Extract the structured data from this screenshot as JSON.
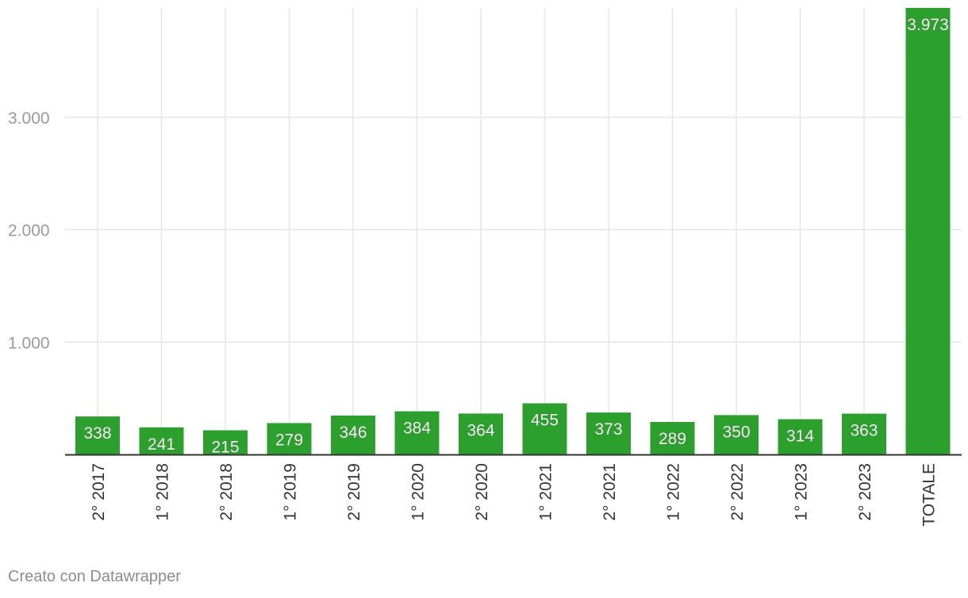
{
  "chart_data": {
    "type": "bar",
    "title": "",
    "xlabel": "",
    "ylabel": "",
    "categories": [
      "2° 2017",
      "1° 2018",
      "2° 2018",
      "1° 2019",
      "2° 2019",
      "1° 2020",
      "2° 2020",
      "1° 2021",
      "2° 2021",
      "1° 2022",
      "2° 2022",
      "1° 2023",
      "2° 2023",
      "TOTALE"
    ],
    "values": [
      338,
      241,
      215,
      279,
      346,
      384,
      364,
      455,
      373,
      289,
      350,
      314,
      363,
      3973
    ],
    "value_labels": [
      "338",
      "241",
      "215",
      "279",
      "346",
      "384",
      "364",
      "455",
      "373",
      "289",
      "350",
      "314",
      "363",
      "3.973"
    ],
    "y_ticks": [
      1000,
      2000,
      3000
    ],
    "y_tick_labels": [
      "1.000",
      "2.000",
      "3.000"
    ],
    "ylim": [
      0,
      3973
    ],
    "grid": true,
    "bar_color": "#2ca02c",
    "legend": "none"
  },
  "footer": {
    "credit": "Creato con Datawrapper"
  }
}
